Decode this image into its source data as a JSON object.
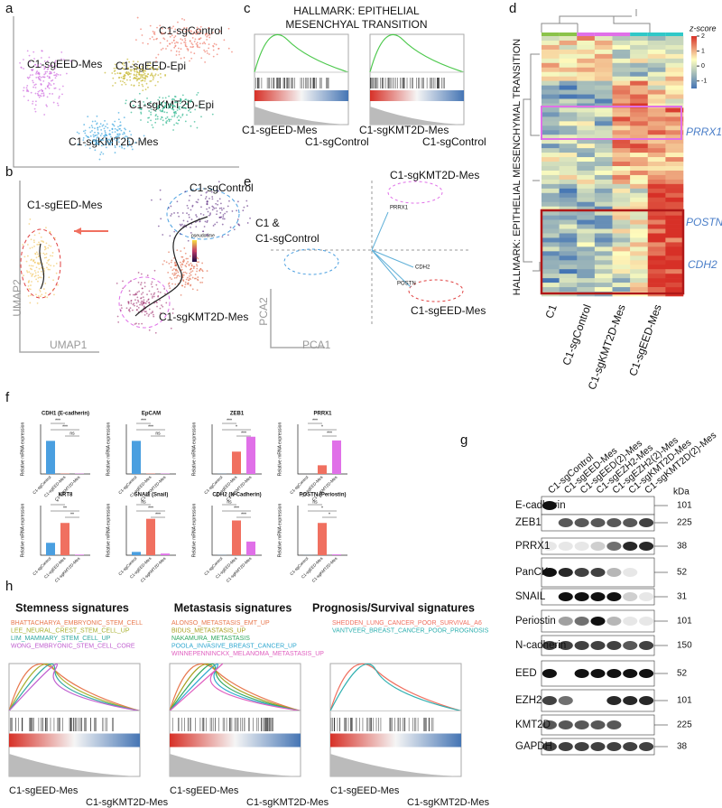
{
  "a": {
    "letter": "a",
    "clusters": [
      "C1-sgControl",
      "C1-sgEED-Epi",
      "C1-sgEED-Mes",
      "C1-sgKMT2D-Epi",
      "C1-sgKMT2D-Mes"
    ]
  },
  "b": {
    "letter": "b",
    "clusters": [
      "C1-sgControl",
      "C1-sgEED-Mes",
      "C1-sgKMT2D-Mes"
    ],
    "legend_title": "pseudotime",
    "x_label": "UMAP1",
    "y_label": "UMAP2"
  },
  "c": {
    "letter": "c",
    "title": [
      "HALLMARK: EPITHELIAL",
      "MESENCHYAL TRANSITION"
    ],
    "comparisons": [
      [
        "C1-sgEED-Mes",
        "C1-sgControl"
      ],
      [
        "C1-sgKMT2D-Mes",
        "C1-sgControl"
      ]
    ]
  },
  "d": {
    "letter": "d",
    "legend_title": "z-score",
    "legend_ticks": [
      2,
      1,
      0,
      -1
    ],
    "row_title": "HALLMARK: EPITHELIAL MESENCHYMAL TRANSITION",
    "genes": [
      "PRRX1",
      "POSTN",
      "CDH2"
    ],
    "columns": [
      "C1",
      "C1-sgControl",
      "C1-sgKMT2D-Mes",
      "C1-sgEED-Mes"
    ]
  },
  "e": {
    "letter": "e",
    "top_group": "C1-sgKMT2D-Mes",
    "left_group": [
      "C1 &",
      "C1-sgControl"
    ],
    "bottom_group": "C1-sgEED-Mes",
    "x_label": "PCA1",
    "y_label": "PCA2",
    "loadings": [
      "PRRX1",
      "CDH2",
      "POSTN"
    ]
  },
  "f": {
    "letter": "f",
    "type": "bar",
    "groups": [
      "C1-sgControl",
      "C1-sgEED-Mes",
      "C1-sgKMT2D-Mes"
    ],
    "colors": [
      "#4a9fe0",
      "#f07060",
      "#e070e8"
    ],
    "y_label": "Relative mRNA expression",
    "plots": [
      {
        "title": "CDH1 (E-cadherin)",
        "values": [
          1,
          0.01,
          0.01
        ],
        "ylim": [
          0,
          1.5
        ],
        "sig": [
          "***",
          "***",
          "ns"
        ]
      },
      {
        "title": "EpCAM",
        "values": [
          1,
          0.01,
          0.01
        ],
        "ylim": [
          0,
          1.5
        ],
        "sig": [
          "***",
          "***",
          "ns"
        ]
      },
      {
        "title": "ZEB1",
        "values": [
          1,
          180,
          300
        ],
        "ylim": [
          0,
          400
        ],
        "sig": [
          "***",
          "*",
          "***"
        ]
      },
      {
        "title": "PRRX1",
        "values": [
          1,
          700,
          2700
        ],
        "ylim": [
          0,
          4000
        ],
        "sig": [
          "***",
          "*",
          "***"
        ]
      },
      {
        "title": "KRT8",
        "values": [
          1,
          2.6,
          0.05
        ],
        "ylim": [
          0,
          4
        ],
        "sig": [
          "*",
          "**",
          "**"
        ]
      },
      {
        "title": "SNAI1 (Snail)",
        "values": [
          1,
          11,
          0.5
        ],
        "ylim": [
          0,
          15
        ],
        "sig": [
          "ns",
          "***",
          "***"
        ]
      },
      {
        "title": "CDH2 (N-Cadherin)",
        "values": [
          1,
          280,
          110
        ],
        "ylim": [
          0,
          400
        ],
        "sig": [
          "ns",
          "***",
          "***"
        ]
      },
      {
        "title": "POSTN (Periostin)",
        "values": [
          1,
          390,
          10
        ],
        "ylim": [
          0,
          600
        ],
        "sig": [
          "ns",
          "*",
          "*"
        ]
      }
    ]
  },
  "g": {
    "letter": "g",
    "samples": [
      "C1-sgControl",
      "C1-sgEED-Mes",
      "C1-sgEED(2)-Mes",
      "C1-sgEZH2-Mes",
      "C1-sgEZH2(2)-Mes",
      "C1-sgKMT2D-Mes",
      "C1-sgKMT2D(2)-Mes"
    ],
    "unit": "kDa",
    "blots": [
      {
        "name": "E-cadherin",
        "kda": 101
      },
      {
        "name": "ZEB1",
        "kda": 225
      },
      {
        "name": "PRRX1",
        "kda": 38
      },
      {
        "name": "PanCK",
        "kda": 52
      },
      {
        "name": "SNAIL",
        "kda": 31
      },
      {
        "name": "Periostin",
        "kda": 101
      },
      {
        "name": "N-cadherin",
        "kda": 150
      },
      {
        "name": "EED",
        "kda": 52
      },
      {
        "name": "EZH2",
        "kda": 101
      },
      {
        "name": "KMT2D",
        "kda": 225
      },
      {
        "name": "GAPDH",
        "kda": 38
      }
    ]
  },
  "h": {
    "letter": "h",
    "comparison": [
      "C1-sgEED-Mes",
      "C1-sgKMT2D-Mes"
    ],
    "panels": [
      {
        "title": "Stemness signatures",
        "gene_sets": [
          "BHATTACHARYA_EMBRYONIC_STEM_CELL",
          "LEE_NEURAL_CREST_STEM_CELL_UP",
          "LIM_MAMMARY_STEM_CELL_UP",
          "WONG_EMBRYONIC_STEM_CELL_CORE"
        ],
        "colors": [
          "#e8784e",
          "#a8b030",
          "#30a8a0",
          "#c060d0"
        ]
      },
      {
        "title": "Metastasis signatures",
        "gene_sets": [
          "ALONSO_METASTASIS_EMT_UP",
          "BIDUS_METASTASIS_UP",
          "NAKAMURA_METASTASIS",
          "POOLA_INVASIVE_BREAST_CANCER_UP",
          "WINNEPENNINCKX_MELANOMA_METASTASIS_UP"
        ],
        "colors": [
          "#e8784e",
          "#a8a020",
          "#30a860",
          "#30a8d0",
          "#e060c0"
        ]
      },
      {
        "title": "Prognosis/Survival signatures",
        "gene_sets": [
          "SHEDDEN_LUNG_CANCER_POOR_SURVIVAL_A6",
          "VANTVEER_BREAST_CANCER_POOR_PROGNOSIS"
        ],
        "colors": [
          "#f07060",
          "#30b0b0"
        ]
      }
    ]
  }
}
